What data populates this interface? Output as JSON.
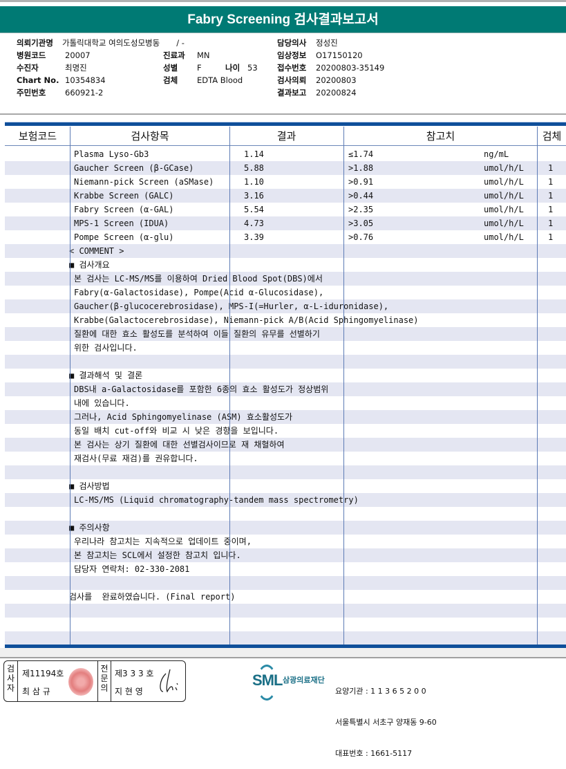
{
  "title": "Fabry Screening 검사결과보고서",
  "patient_info": {
    "requesting_institution_label": "의뢰기관명",
    "requesting_institution": "가톨릭대학교 여의도성모병동",
    "ward": "/ -",
    "hospital_code_label": "병원코드",
    "hospital_code": "20007",
    "patient_label": "수진자",
    "patient": "최명진",
    "chart_no_label": "Chart No.",
    "chart_no": "10354834",
    "resident_no_label": "주민번호",
    "resident_no": "660921-2",
    "department_label": "진료과",
    "department": "MN",
    "sex_label": "성별",
    "sex": "F",
    "age_label": "나이",
    "age": "53",
    "specimen_label": "검체",
    "specimen": "EDTA Blood",
    "doctor_label": "담당의사",
    "doctor": "정성진",
    "clinical_info_label": "임상정보",
    "clinical_info": "O17150120",
    "receipt_no_label": "접수번호",
    "receipt_no": "20200803-35149",
    "request_date_label": "검사의뢰",
    "request_date": "20200803",
    "report_date_label": "결과보고",
    "report_date": "20200824"
  },
  "table": {
    "headers": [
      "보험코드",
      "검사항목",
      "결과",
      "참고치",
      "검체"
    ],
    "rows": [
      {
        "item": "Plasma Lyso-Gb3",
        "result": "1.14",
        "reference": "≤1.74",
        "unit": "ng/mL",
        "specimen": ""
      },
      {
        "item": "Gaucher Screen (β-GCase)",
        "result": "5.88",
        "reference": ">1.88",
        "unit": "umol/h/L",
        "specimen": "1"
      },
      {
        "item": "Niemann-pick Screen (aSMase)",
        "result": "1.10",
        "reference": ">0.91",
        "unit": "umol/h/L",
        "specimen": "1"
      },
      {
        "item": "Krabbe Screen (GALC)",
        "result": "3.16",
        "reference": ">0.44",
        "unit": "umol/h/L",
        "specimen": "1"
      },
      {
        "item": "Fabry Screen (α-GAL)",
        "result": "5.54",
        "reference": ">2.35",
        "unit": "umol/h/L",
        "specimen": "1"
      },
      {
        "item": "MPS-1 Screen (IDUA)",
        "result": "4.73",
        "reference": ">3.05",
        "unit": "umol/h/L",
        "specimen": "1"
      },
      {
        "item": "Pompe Screen (α-glu)",
        "result": "3.39",
        "reference": ">0.76",
        "unit": "umol/h/L",
        "specimen": "1"
      }
    ],
    "comment_lines": [
      "< COMMENT >",
      "■ 검사개요",
      "본 검사는 LC-MS/MS를 이용하여 Dried Blood Spot(DBS)에서",
      "Fabry(α-Galactosidase), Pompe(Acid α-Glucosidase),",
      "Gaucher(β-glucocerebrosidase), MPS-I(=Hurler, α-L-iduronidase),",
      "Krabbe(Galactocerebrosidase), Niemann-pick A/B(Acid Sphingomyelinase)",
      "질환에 대한 효소 활성도를 분석하여 이들 질환의 유무를 선별하기",
      "위한 검사입니다.",
      "",
      "■ 결과해석 및 결론",
      "DBS내 a-Galactosidase를 포함한 6종의 효소 활성도가 정상범위",
      "내에 있습니다.",
      "그러나, Acid Sphingomyelinase (ASM) 효소활성도가",
      "동일 배치 cut-off와 비교 시 낮은 경향을 보입니다.",
      "본 검사는 상기 질환에 대한 선별검사이므로 재 채혈하여",
      "재검사(무료 재검)를 권유합니다.",
      "",
      "■ 검사방법",
      "LC-MS/MS (Liquid chromatography-tandem mass spectrometry)",
      "",
      "■ 주의사항",
      "우리나라 참고치는 지속적으로 업데이트 중이며,",
      "본 참고치는 SCL에서 설정한 참고치 입니다.",
      "담당자 연락처: 02-330-2081",
      "",
      "검사를  완료하였습니다. (Final report)",
      "",
      "",
      ""
    ]
  },
  "footer": {
    "examiner_label": "검사자",
    "examiner_no": "제11194호",
    "examiner_name": "최 삼 규",
    "physician_label": "전문의",
    "physician_no": "제3 3 3 호",
    "physician_name": "지 현 영",
    "logo_text": "SML",
    "org_name": "삼광의료재단",
    "care_institution": "요양기관 : 1 1 3 6 5 2 0 0",
    "address": "서울특별시 서초구 양재동 9-60",
    "phone": "대표번호 : 1661-5117"
  }
}
